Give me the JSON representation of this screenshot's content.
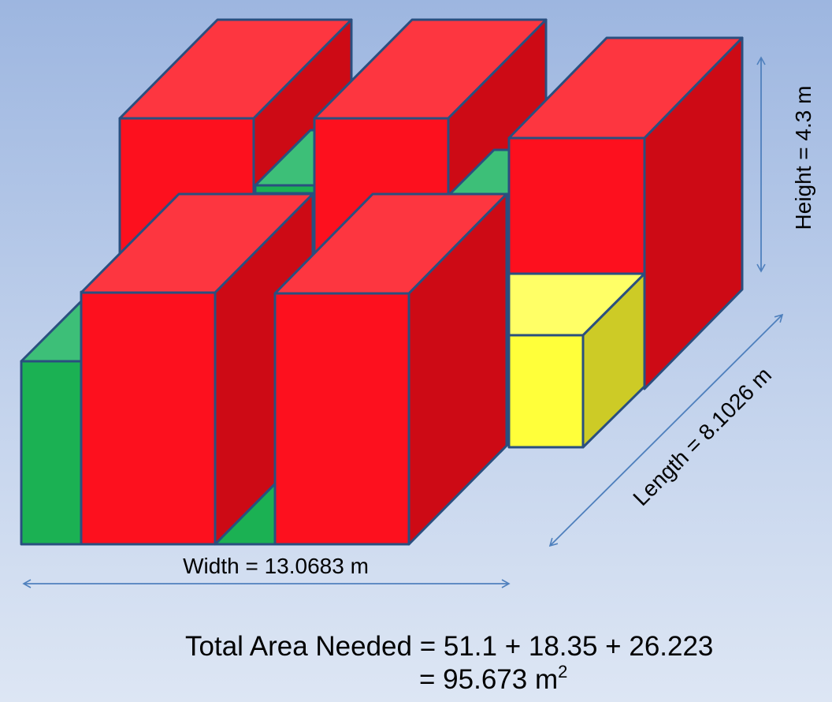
{
  "dimensions": {
    "height_label": "Height = 4.3 m",
    "length_label": "Length = 8.1026 m",
    "width_label": "Width = 13.0683 m"
  },
  "total": {
    "line1": "Total Area Needed = 51.1 + 18.35 + 26.223",
    "line2_value": "= 95.673 m",
    "line2_superscript": "2"
  },
  "colors": {
    "red_front": "#fd101e",
    "red_top": "#fd3640",
    "red_side": "#cd0a15",
    "green_front": "#1bb153",
    "green_top": "#3dbf78",
    "yellow_front": "#ffff3a",
    "yellow_top": "#ffff66",
    "yellow_side": "#cdcb26",
    "outline": "#2a4f7f",
    "arrow": "#4f80bd"
  }
}
